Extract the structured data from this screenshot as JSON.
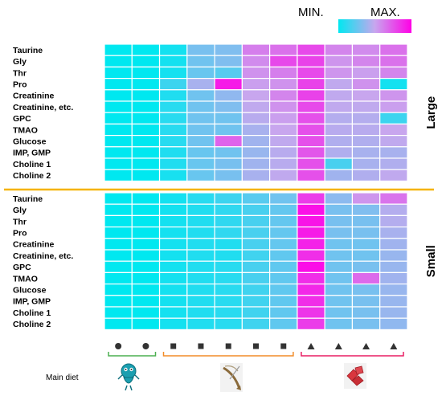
{
  "chart_data": {
    "type": "heatmap",
    "title": "",
    "color_scale": {
      "min_label": "MIN.",
      "max_label": "MAX.",
      "colors": [
        "#00e8f0",
        "#c8a6ee",
        "#ff00e6"
      ]
    },
    "groups": [
      {
        "name": "Large",
        "rows": [
          "Taurine",
          "Gly",
          "Thr",
          "Pro",
          "Creatinine",
          "Creatinine, etc.",
          "GPC",
          "TMAO",
          "Glucose",
          "IMP, GMP",
          "Choline 1",
          "Choline 2"
        ],
        "values": [
          [
            0.0,
            0.0,
            0.05,
            0.3,
            0.32,
            0.62,
            0.66,
            0.78,
            0.6,
            0.58,
            0.66
          ],
          [
            0.0,
            0.0,
            0.05,
            0.28,
            0.32,
            0.58,
            0.78,
            0.8,
            0.55,
            0.6,
            0.66
          ],
          [
            0.0,
            0.0,
            0.05,
            0.26,
            0.22,
            0.56,
            0.62,
            0.78,
            0.55,
            0.52,
            0.6
          ],
          [
            0.0,
            0.0,
            0.15,
            0.42,
            0.92,
            0.52,
            0.56,
            0.8,
            0.48,
            0.56,
            0.05
          ],
          [
            0.0,
            0.0,
            0.08,
            0.28,
            0.36,
            0.5,
            0.6,
            0.8,
            0.48,
            0.5,
            0.55
          ],
          [
            0.0,
            0.0,
            0.1,
            0.28,
            0.32,
            0.48,
            0.56,
            0.78,
            0.48,
            0.48,
            0.52
          ],
          [
            0.0,
            0.0,
            0.1,
            0.28,
            0.28,
            0.46,
            0.52,
            0.76,
            0.45,
            0.45,
            0.15
          ],
          [
            0.0,
            0.0,
            0.1,
            0.28,
            0.28,
            0.42,
            0.5,
            0.76,
            0.46,
            0.46,
            0.5
          ],
          [
            0.0,
            0.0,
            0.1,
            0.28,
            0.7,
            0.4,
            0.48,
            0.76,
            0.44,
            0.44,
            0.48
          ],
          [
            0.0,
            0.0,
            0.08,
            0.26,
            0.28,
            0.38,
            0.46,
            0.74,
            0.44,
            0.42,
            0.42
          ],
          [
            0.0,
            0.0,
            0.08,
            0.26,
            0.3,
            0.4,
            0.46,
            0.76,
            0.18,
            0.42,
            0.44
          ],
          [
            0.0,
            0.0,
            0.06,
            0.26,
            0.3,
            0.42,
            0.48,
            0.76,
            0.4,
            0.44,
            0.48
          ]
        ]
      },
      {
        "name": "Small",
        "rows": [
          "Taurine",
          "Gly",
          "Thr",
          "Pro",
          "Creatinine",
          "Creatinine, etc.",
          "GPC",
          "TMAO",
          "Glucose",
          "IMP, GMP",
          "Choline 1",
          "Choline 2"
        ],
        "values": [
          [
            0.0,
            0.0,
            0.05,
            0.1,
            0.15,
            0.22,
            0.28,
            0.82,
            0.35,
            0.55,
            0.65
          ],
          [
            0.0,
            0.0,
            0.05,
            0.08,
            0.12,
            0.18,
            0.25,
            0.95,
            0.3,
            0.32,
            0.45
          ],
          [
            0.0,
            0.0,
            0.05,
            0.08,
            0.12,
            0.18,
            0.25,
            0.94,
            0.3,
            0.3,
            0.45
          ],
          [
            0.0,
            0.0,
            0.05,
            0.08,
            0.12,
            0.18,
            0.25,
            0.92,
            0.3,
            0.3,
            0.42
          ],
          [
            0.0,
            0.0,
            0.05,
            0.08,
            0.08,
            0.18,
            0.25,
            0.9,
            0.28,
            0.28,
            0.4
          ],
          [
            0.0,
            0.0,
            0.05,
            0.08,
            0.08,
            0.16,
            0.24,
            0.86,
            0.28,
            0.28,
            0.38
          ],
          [
            0.0,
            0.0,
            0.05,
            0.08,
            0.1,
            0.18,
            0.24,
            0.96,
            0.28,
            0.3,
            0.38
          ],
          [
            0.0,
            0.0,
            0.05,
            0.08,
            0.1,
            0.18,
            0.24,
            0.86,
            0.28,
            0.68,
            0.4
          ],
          [
            0.0,
            0.0,
            0.05,
            0.08,
            0.1,
            0.16,
            0.24,
            0.88,
            0.28,
            0.3,
            0.38
          ],
          [
            0.0,
            0.0,
            0.05,
            0.08,
            0.1,
            0.16,
            0.24,
            0.86,
            0.28,
            0.3,
            0.38
          ],
          [
            0.0,
            0.0,
            0.05,
            0.08,
            0.1,
            0.16,
            0.24,
            0.84,
            0.28,
            0.3,
            0.38
          ],
          [
            0.0,
            0.0,
            0.05,
            0.08,
            0.1,
            0.16,
            0.24,
            0.82,
            0.28,
            0.3,
            0.36
          ]
        ]
      }
    ],
    "columns": [
      {
        "marker": "circle"
      },
      {
        "marker": "circle"
      },
      {
        "marker": "square"
      },
      {
        "marker": "square"
      },
      {
        "marker": "square"
      },
      {
        "marker": "square"
      },
      {
        "marker": "square"
      },
      {
        "marker": "triangle"
      },
      {
        "marker": "triangle"
      },
      {
        "marker": "triangle"
      },
      {
        "marker": "triangle"
      }
    ],
    "diet_groups": [
      {
        "icon": "zooplankton-icon",
        "color": "#4caf50",
        "columns": [
          0,
          1
        ]
      },
      {
        "icon": "shrimp-icon",
        "color": "#f28c28",
        "columns": [
          2,
          6
        ]
      },
      {
        "icon": "fish-meat-icon",
        "color": "#e91e63",
        "columns": [
          7,
          10
        ]
      }
    ],
    "diet_label": "Main diet",
    "divider_color": "#f5b300"
  }
}
